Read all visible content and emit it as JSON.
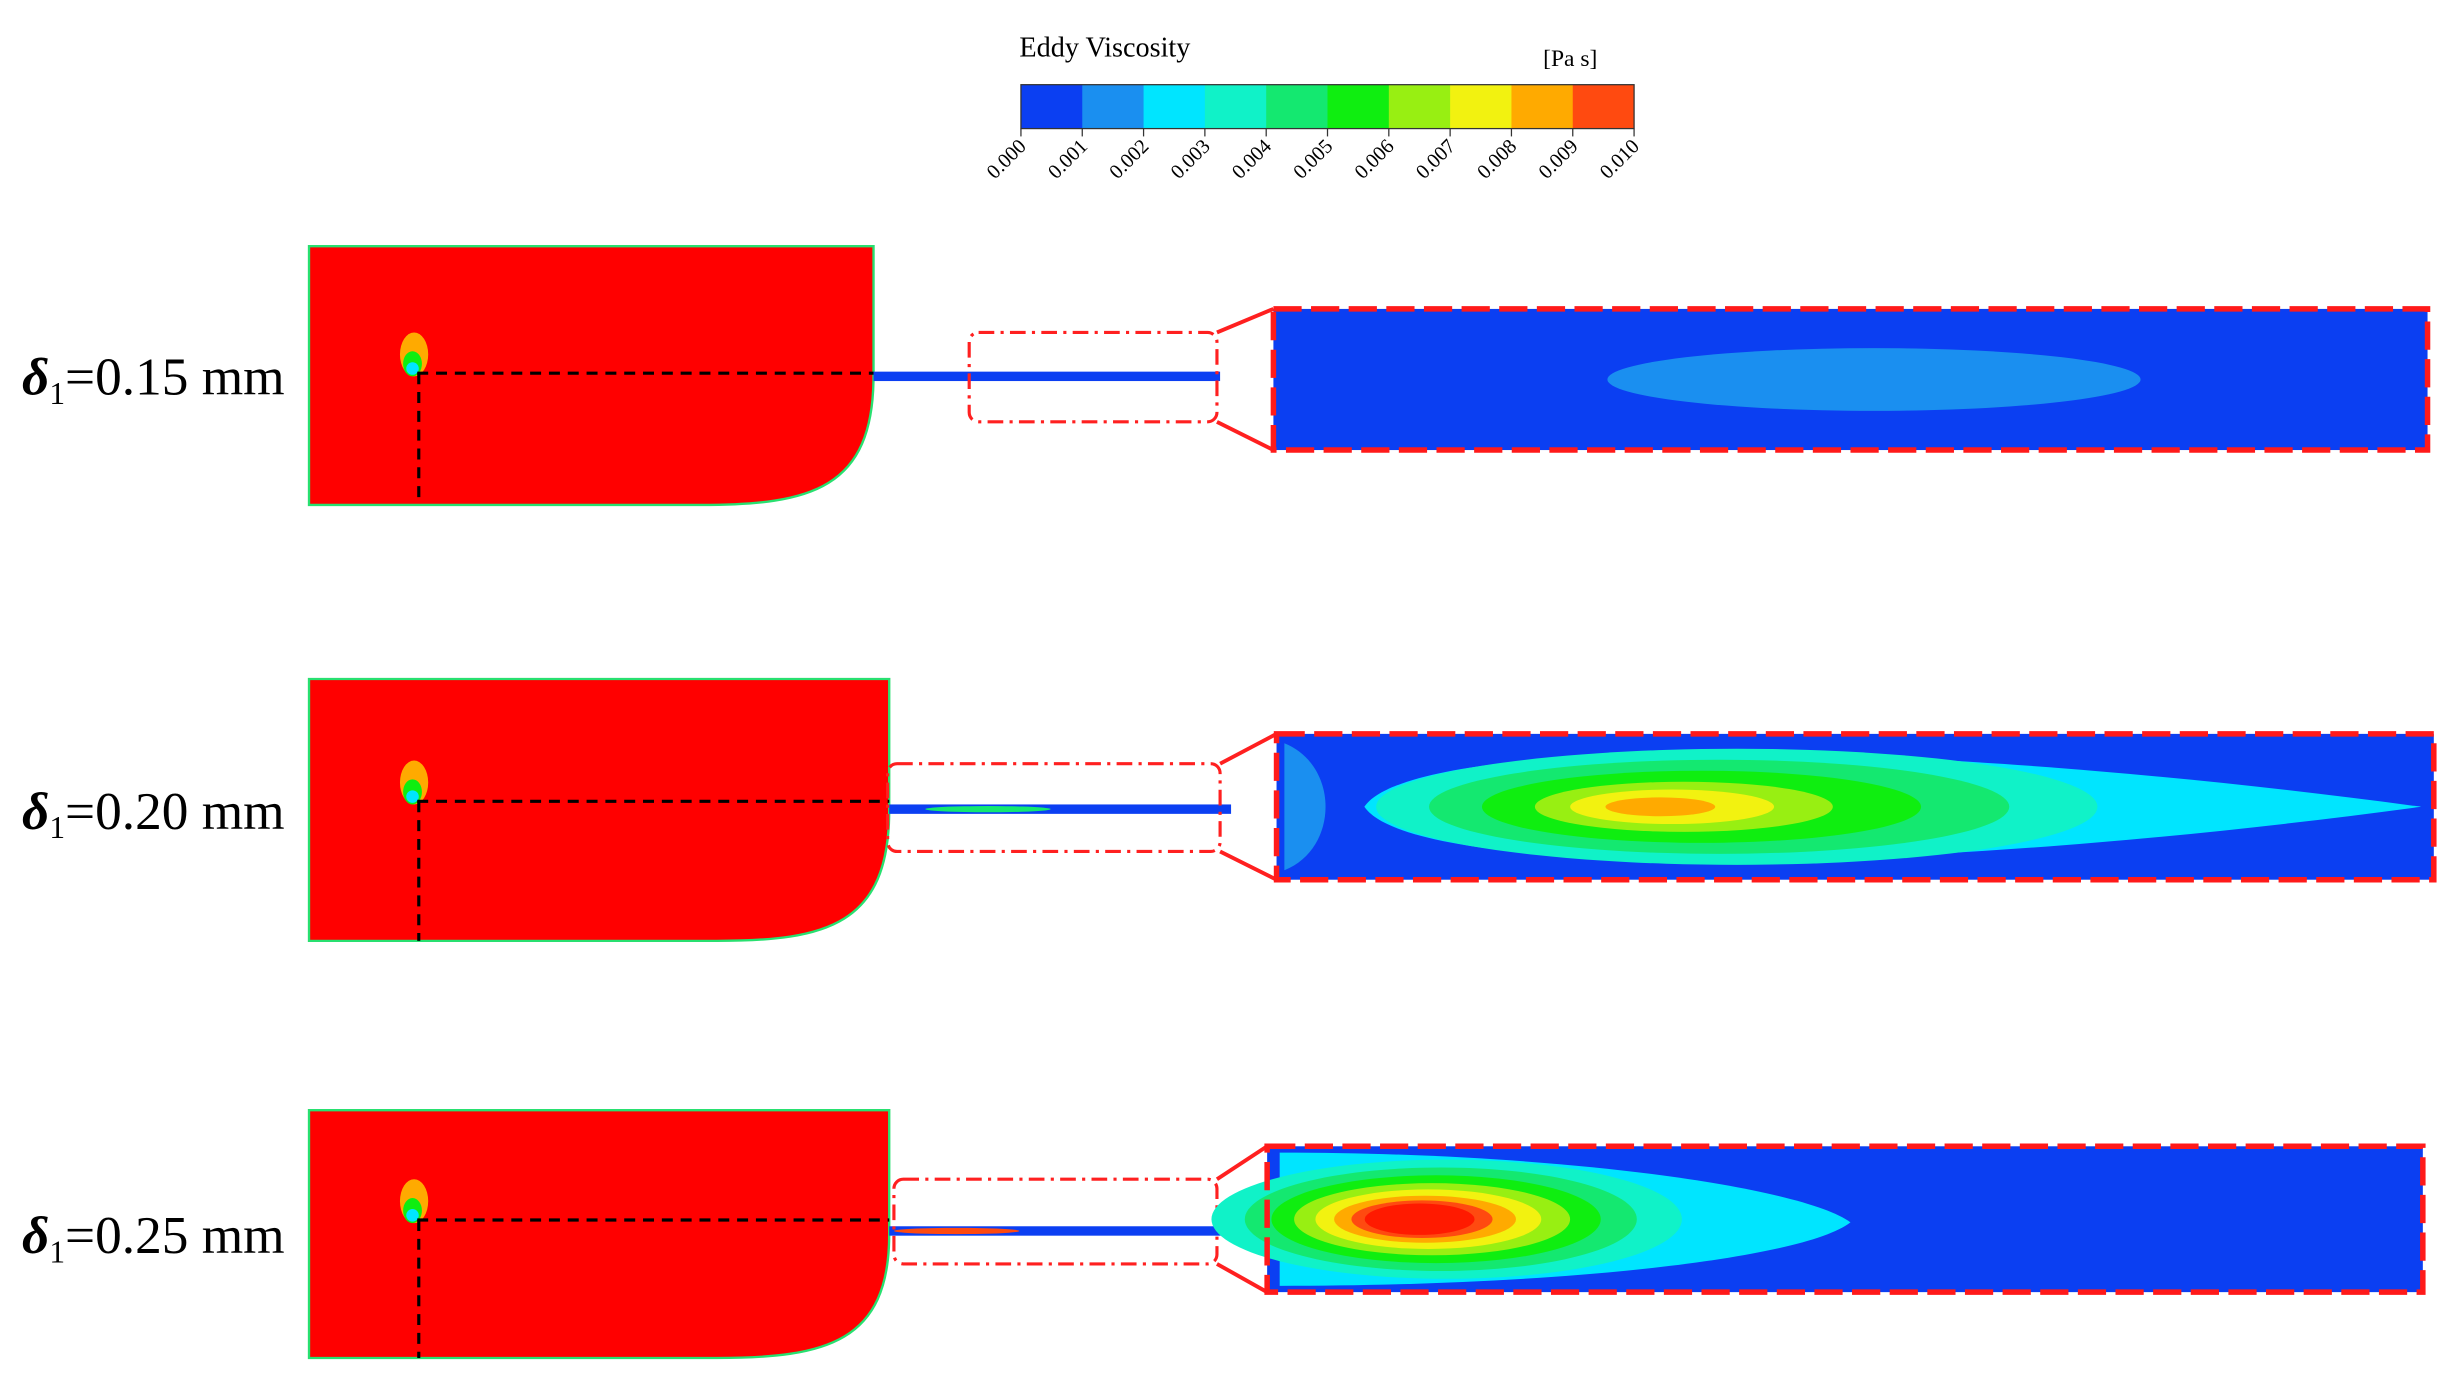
{
  "colorbar": {
    "title": "Eddy Viscosity",
    "unit": "[Pa s]",
    "colors": [
      "#0b3ff2",
      "#1a8ff0",
      "#00e5ff",
      "#10f2c8",
      "#14e870",
      "#0fee10",
      "#98ef12",
      "#f2f210",
      "#ffaa00",
      "#ff4a10"
    ],
    "tick_labels": [
      "0.000",
      "0.001",
      "0.002",
      "0.003",
      "0.004",
      "0.005",
      "0.006",
      "0.007",
      "0.008",
      "0.009",
      "0.010"
    ]
  },
  "panels": [
    {
      "symbol": "δ",
      "subscript": "1",
      "label": "=0.15 mm"
    },
    {
      "symbol": "δ",
      "subscript": "1",
      "label": "=0.20 mm"
    },
    {
      "symbol": "δ",
      "subscript": "1",
      "label": "=0.25 mm"
    }
  ]
}
